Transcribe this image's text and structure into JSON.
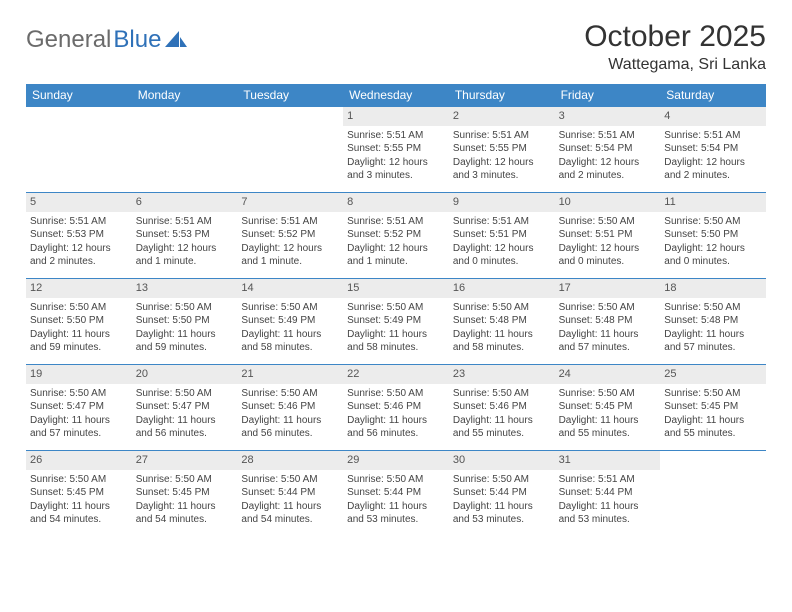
{
  "logo": {
    "text_gray": "General",
    "text_blue": "Blue"
  },
  "title": "October 2025",
  "location": "Wattegama, Sri Lanka",
  "colors": {
    "header_bg": "#3d86c6",
    "header_text": "#ffffff",
    "daynum_bg": "#ececec",
    "border": "#3d86c6",
    "logo_gray": "#6b6b6b",
    "logo_blue": "#2f71b8"
  },
  "day_names": [
    "Sunday",
    "Monday",
    "Tuesday",
    "Wednesday",
    "Thursday",
    "Friday",
    "Saturday"
  ],
  "weeks": [
    [
      {
        "day": "",
        "sunrise": "",
        "sunset": "",
        "daylight": ""
      },
      {
        "day": "",
        "sunrise": "",
        "sunset": "",
        "daylight": ""
      },
      {
        "day": "",
        "sunrise": "",
        "sunset": "",
        "daylight": ""
      },
      {
        "day": "1",
        "sunrise": "Sunrise: 5:51 AM",
        "sunset": "Sunset: 5:55 PM",
        "daylight": "Daylight: 12 hours and 3 minutes."
      },
      {
        "day": "2",
        "sunrise": "Sunrise: 5:51 AM",
        "sunset": "Sunset: 5:55 PM",
        "daylight": "Daylight: 12 hours and 3 minutes."
      },
      {
        "day": "3",
        "sunrise": "Sunrise: 5:51 AM",
        "sunset": "Sunset: 5:54 PM",
        "daylight": "Daylight: 12 hours and 2 minutes."
      },
      {
        "day": "4",
        "sunrise": "Sunrise: 5:51 AM",
        "sunset": "Sunset: 5:54 PM",
        "daylight": "Daylight: 12 hours and 2 minutes."
      }
    ],
    [
      {
        "day": "5",
        "sunrise": "Sunrise: 5:51 AM",
        "sunset": "Sunset: 5:53 PM",
        "daylight": "Daylight: 12 hours and 2 minutes."
      },
      {
        "day": "6",
        "sunrise": "Sunrise: 5:51 AM",
        "sunset": "Sunset: 5:53 PM",
        "daylight": "Daylight: 12 hours and 1 minute."
      },
      {
        "day": "7",
        "sunrise": "Sunrise: 5:51 AM",
        "sunset": "Sunset: 5:52 PM",
        "daylight": "Daylight: 12 hours and 1 minute."
      },
      {
        "day": "8",
        "sunrise": "Sunrise: 5:51 AM",
        "sunset": "Sunset: 5:52 PM",
        "daylight": "Daylight: 12 hours and 1 minute."
      },
      {
        "day": "9",
        "sunrise": "Sunrise: 5:51 AM",
        "sunset": "Sunset: 5:51 PM",
        "daylight": "Daylight: 12 hours and 0 minutes."
      },
      {
        "day": "10",
        "sunrise": "Sunrise: 5:50 AM",
        "sunset": "Sunset: 5:51 PM",
        "daylight": "Daylight: 12 hours and 0 minutes."
      },
      {
        "day": "11",
        "sunrise": "Sunrise: 5:50 AM",
        "sunset": "Sunset: 5:50 PM",
        "daylight": "Daylight: 12 hours and 0 minutes."
      }
    ],
    [
      {
        "day": "12",
        "sunrise": "Sunrise: 5:50 AM",
        "sunset": "Sunset: 5:50 PM",
        "daylight": "Daylight: 11 hours and 59 minutes."
      },
      {
        "day": "13",
        "sunrise": "Sunrise: 5:50 AM",
        "sunset": "Sunset: 5:50 PM",
        "daylight": "Daylight: 11 hours and 59 minutes."
      },
      {
        "day": "14",
        "sunrise": "Sunrise: 5:50 AM",
        "sunset": "Sunset: 5:49 PM",
        "daylight": "Daylight: 11 hours and 58 minutes."
      },
      {
        "day": "15",
        "sunrise": "Sunrise: 5:50 AM",
        "sunset": "Sunset: 5:49 PM",
        "daylight": "Daylight: 11 hours and 58 minutes."
      },
      {
        "day": "16",
        "sunrise": "Sunrise: 5:50 AM",
        "sunset": "Sunset: 5:48 PM",
        "daylight": "Daylight: 11 hours and 58 minutes."
      },
      {
        "day": "17",
        "sunrise": "Sunrise: 5:50 AM",
        "sunset": "Sunset: 5:48 PM",
        "daylight": "Daylight: 11 hours and 57 minutes."
      },
      {
        "day": "18",
        "sunrise": "Sunrise: 5:50 AM",
        "sunset": "Sunset: 5:48 PM",
        "daylight": "Daylight: 11 hours and 57 minutes."
      }
    ],
    [
      {
        "day": "19",
        "sunrise": "Sunrise: 5:50 AM",
        "sunset": "Sunset: 5:47 PM",
        "daylight": "Daylight: 11 hours and 57 minutes."
      },
      {
        "day": "20",
        "sunrise": "Sunrise: 5:50 AM",
        "sunset": "Sunset: 5:47 PM",
        "daylight": "Daylight: 11 hours and 56 minutes."
      },
      {
        "day": "21",
        "sunrise": "Sunrise: 5:50 AM",
        "sunset": "Sunset: 5:46 PM",
        "daylight": "Daylight: 11 hours and 56 minutes."
      },
      {
        "day": "22",
        "sunrise": "Sunrise: 5:50 AM",
        "sunset": "Sunset: 5:46 PM",
        "daylight": "Daylight: 11 hours and 56 minutes."
      },
      {
        "day": "23",
        "sunrise": "Sunrise: 5:50 AM",
        "sunset": "Sunset: 5:46 PM",
        "daylight": "Daylight: 11 hours and 55 minutes."
      },
      {
        "day": "24",
        "sunrise": "Sunrise: 5:50 AM",
        "sunset": "Sunset: 5:45 PM",
        "daylight": "Daylight: 11 hours and 55 minutes."
      },
      {
        "day": "25",
        "sunrise": "Sunrise: 5:50 AM",
        "sunset": "Sunset: 5:45 PM",
        "daylight": "Daylight: 11 hours and 55 minutes."
      }
    ],
    [
      {
        "day": "26",
        "sunrise": "Sunrise: 5:50 AM",
        "sunset": "Sunset: 5:45 PM",
        "daylight": "Daylight: 11 hours and 54 minutes."
      },
      {
        "day": "27",
        "sunrise": "Sunrise: 5:50 AM",
        "sunset": "Sunset: 5:45 PM",
        "daylight": "Daylight: 11 hours and 54 minutes."
      },
      {
        "day": "28",
        "sunrise": "Sunrise: 5:50 AM",
        "sunset": "Sunset: 5:44 PM",
        "daylight": "Daylight: 11 hours and 54 minutes."
      },
      {
        "day": "29",
        "sunrise": "Sunrise: 5:50 AM",
        "sunset": "Sunset: 5:44 PM",
        "daylight": "Daylight: 11 hours and 53 minutes."
      },
      {
        "day": "30",
        "sunrise": "Sunrise: 5:50 AM",
        "sunset": "Sunset: 5:44 PM",
        "daylight": "Daylight: 11 hours and 53 minutes."
      },
      {
        "day": "31",
        "sunrise": "Sunrise: 5:51 AM",
        "sunset": "Sunset: 5:44 PM",
        "daylight": "Daylight: 11 hours and 53 minutes."
      },
      {
        "day": "",
        "sunrise": "",
        "sunset": "",
        "daylight": ""
      }
    ]
  ]
}
